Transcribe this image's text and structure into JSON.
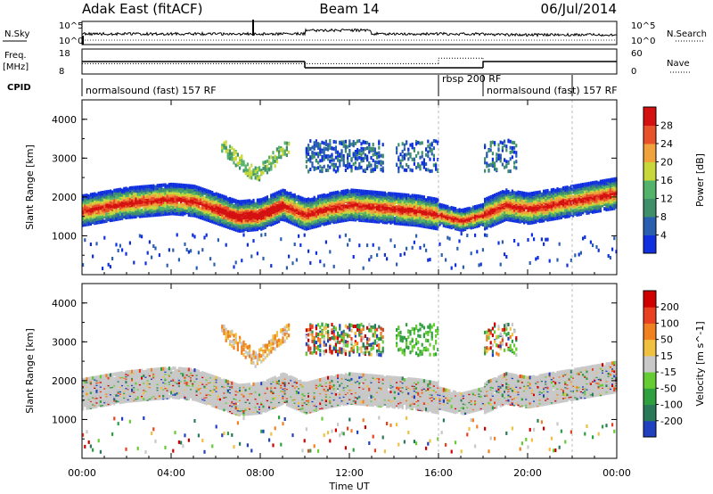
{
  "header": {
    "station": "Adak East (fitACF)",
    "beam": "Beam 14",
    "date": "06/Jul/2014"
  },
  "panels": {
    "nsky_label": "N.Sky",
    "nsearch_label": "N.Search",
    "nsky_ticks": [
      "10^5",
      "10^0"
    ],
    "nsearch_ticks": [
      "10^5",
      "10^0"
    ],
    "freq_label_1": "Freq.",
    "freq_label_2": "[MHz]",
    "freq_ticks": [
      "18",
      "8"
    ],
    "nave_label": "Nave",
    "nave_ticks": [
      "60",
      "0"
    ],
    "cpid_label": "CPID",
    "cpid_segments": [
      {
        "label": "normalsound (fast) 157 RF",
        "start_h": 0,
        "end_h": 16
      },
      {
        "label": "rbsp 200 RF",
        "start_h": 16,
        "end_h": 18
      },
      {
        "label": "normalsound (fast) 157 RF",
        "start_h": 18,
        "end_h": 22
      }
    ],
    "freq_steps": [
      {
        "start_h": 0,
        "end_h": 10,
        "mhz": 13
      },
      {
        "start_h": 10,
        "end_h": 18,
        "mhz": 10.5
      },
      {
        "start_h": 18,
        "end_h": 24,
        "mhz": 13
      }
    ],
    "nave_steps": [
      {
        "start_h": 0,
        "end_h": 16,
        "nave": 25
      },
      {
        "start_h": 16,
        "end_h": 18,
        "nave": 38
      },
      {
        "start_h": 18,
        "end_h": 24,
        "nave": 30
      }
    ]
  },
  "chart_data": [
    {
      "type": "heatmap",
      "title": "",
      "ylabel": "Slant Range [km]",
      "xlabel": "Time UT",
      "xlim_h": [
        0,
        24
      ],
      "ylim": [
        0,
        4500
      ],
      "ytick_values": [
        1000,
        2000,
        3000,
        4000
      ],
      "ytick_labels": [
        "1000",
        "2000",
        "3000",
        "4000"
      ],
      "xtick_values": [
        0,
        4,
        8,
        12,
        16,
        20,
        24
      ],
      "xtick_labels": [
        "00:00",
        "04:00",
        "08:00",
        "12:00",
        "16:00",
        "20:00",
        "00:00"
      ],
      "colorbar": {
        "label": "Power [dB]",
        "tick_labels": [
          "4",
          "8",
          "12",
          "16",
          "20",
          "24",
          "28"
        ],
        "colors": [
          "#1030e0",
          "#2a5fb0",
          "#3f8f6a",
          "#53b36a",
          "#c8d83a",
          "#f0a23c",
          "#e8522a",
          "#d41010"
        ]
      },
      "band_trace": {
        "time_h": [
          0,
          1,
          2,
          3,
          4,
          5,
          6,
          7,
          8,
          9,
          10,
          11,
          12,
          13,
          14,
          15,
          16,
          17,
          18,
          19,
          20,
          21,
          22,
          23,
          24
        ],
        "range_km": [
          1700,
          1800,
          1900,
          1950,
          2000,
          1950,
          1750,
          1550,
          1600,
          1850,
          1600,
          1750,
          1850,
          1800,
          1750,
          1700,
          1600,
          1450,
          1600,
          1850,
          1750,
          1850,
          1950,
          2050,
          2150
        ]
      }
    },
    {
      "type": "heatmap",
      "title": "",
      "ylabel": "Slant Range [km]",
      "xlabel": "Time UT",
      "xlim_h": [
        0,
        24
      ],
      "ylim": [
        0,
        4500
      ],
      "ytick_values": [
        1000,
        2000,
        3000,
        4000
      ],
      "ytick_labels": [
        "1000",
        "2000",
        "3000",
        "4000"
      ],
      "xtick_values": [
        0,
        4,
        8,
        12,
        16,
        20,
        24
      ],
      "xtick_labels": [
        "00:00",
        "04:00",
        "08:00",
        "12:00",
        "16:00",
        "20:00",
        "00:00"
      ],
      "colorbar": {
        "label": "Velocity [m s^-1]",
        "tick_labels": [
          "200",
          "100",
          "50",
          "15",
          "-15",
          "-50",
          "-100",
          "-200"
        ],
        "colors": [
          "#2040c0",
          "#2a7a5a",
          "#2fa040",
          "#66cc33",
          "#c8c8c8",
          "#f0c040",
          "#f08020",
          "#e84020",
          "#d00000"
        ]
      }
    }
  ],
  "x_axis": {
    "title": "Time UT"
  }
}
